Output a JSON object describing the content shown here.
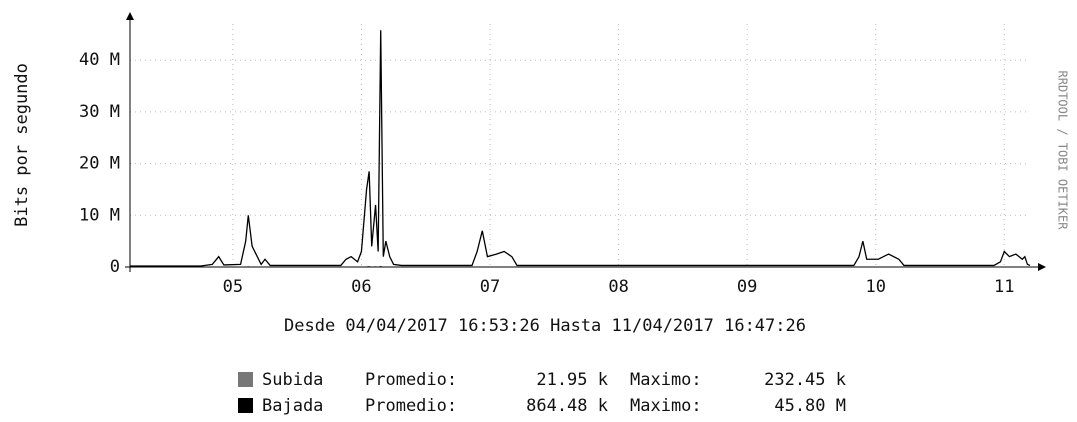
{
  "chart_data": {
    "type": "line",
    "ylabel": "Bits por segundo",
    "watermark": "RRDTOOL / TOBI OETIKER",
    "footer": "Desde 04/04/2017 16:53:26  Hasta 11/04/2017 16:47:26",
    "legend_labels": {
      "average": "Promedio:",
      "maximum": "Maximo:"
    },
    "xlim": [
      4.7,
      11.7
    ],
    "xticks": [
      {
        "value": 5.5,
        "label": "05"
      },
      {
        "value": 6.5,
        "label": "06"
      },
      {
        "value": 7.5,
        "label": "07"
      },
      {
        "value": 8.5,
        "label": "08"
      },
      {
        "value": 9.5,
        "label": "09"
      },
      {
        "value": 10.5,
        "label": "10"
      },
      {
        "value": 11.5,
        "label": "11"
      }
    ],
    "ylim": [
      0,
      47
    ],
    "yticks": [
      0,
      {
        "value": 10,
        "label": "10 M"
      },
      {
        "value": 20,
        "label": "20 M"
      },
      {
        "value": 30,
        "label": "30 M"
      },
      {
        "value": 40,
        "label": "40 M"
      }
    ],
    "grid": true,
    "x": [
      4.7,
      5.25,
      5.34,
      5.39,
      5.43,
      5.56,
      5.6,
      5.62,
      5.65,
      5.68,
      5.72,
      5.75,
      5.79,
      6.34,
      6.38,
      6.42,
      6.47,
      6.5,
      6.54,
      6.56,
      6.58,
      6.61,
      6.63,
      6.65,
      6.67,
      6.69,
      6.72,
      6.75,
      6.81,
      7.36,
      7.4,
      7.44,
      7.48,
      7.55,
      7.61,
      7.67,
      7.71,
      10.33,
      10.37,
      10.4,
      10.43,
      10.52,
      10.6,
      10.68,
      10.72,
      11.42,
      11.47,
      11.5,
      11.54,
      11.59,
      11.64,
      11.66,
      11.68,
      11.7
    ],
    "series": [
      {
        "name": "Subida",
        "color": "#777777",
        "style": "area",
        "average": "21.95 k",
        "maximum": "232.45 k",
        "values": [
          0.02,
          0.02,
          0.03,
          0.05,
          0.02,
          0.03,
          0.08,
          0.15,
          0.06,
          0.04,
          0.02,
          0.04,
          0.02,
          0.02,
          0.05,
          0.06,
          0.04,
          0.06,
          0.12,
          0.2,
          0.08,
          0.15,
          0.06,
          0.23,
          0.05,
          0.1,
          0.05,
          0.03,
          0.02,
          0.02,
          0.06,
          0.1,
          0.04,
          0.05,
          0.06,
          0.04,
          0.02,
          0.02,
          0.04,
          0.08,
          0.03,
          0.03,
          0.05,
          0.03,
          0.02,
          0.02,
          0.03,
          0.06,
          0.04,
          0.05,
          0.03,
          0.04,
          0.02,
          0.02
        ]
      },
      {
        "name": "Bajada",
        "color": "#000000",
        "style": "line",
        "average": "864.48 k",
        "maximum": "45.80 M",
        "values": [
          0.2,
          0.2,
          0.5,
          2,
          0.4,
          0.5,
          5,
          10,
          4,
          2.5,
          0.5,
          1.5,
          0.3,
          0.3,
          1.5,
          2,
          1,
          3,
          15,
          18.5,
          4,
          12,
          3,
          45.8,
          2,
          5,
          2,
          0.5,
          0.3,
          0.3,
          3,
          7,
          2,
          2.5,
          3,
          2,
          0.3,
          0.3,
          2,
          5,
          1.5,
          1.5,
          2.5,
          1.5,
          0.3,
          0.3,
          1,
          3,
          2,
          2.5,
          1.5,
          2,
          0.5,
          0.3
        ]
      }
    ]
  }
}
